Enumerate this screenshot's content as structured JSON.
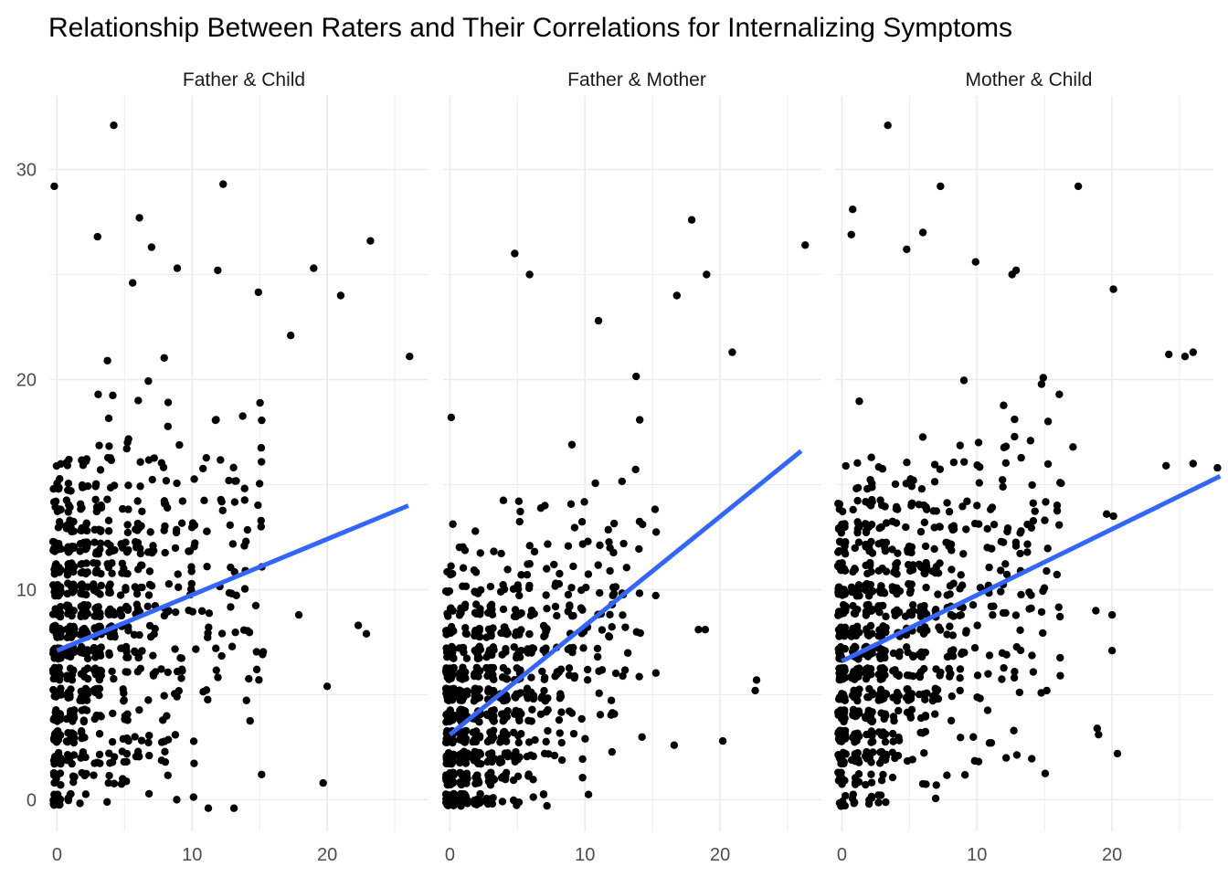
{
  "chart_data": {
    "type": "scatter",
    "title": "Relationship Between Raters and Their Correlations for Internalizing Symptoms",
    "xlabel": "",
    "ylabel": "",
    "xlim": [
      -0.5,
      27.5
    ],
    "ylim": [
      -1.5,
      33.5
    ],
    "x_ticks": [
      0,
      10,
      20
    ],
    "y_ticks": [
      0,
      10,
      20,
      30
    ],
    "grid": true,
    "trend_color": "#3366FF",
    "point_color": "#000000",
    "panels": [
      {
        "label": "Father & Child",
        "trend": {
          "x0": 0,
          "y0": 7.1,
          "x1": 26,
          "y1": 14.0
        },
        "highlighted_points": [
          [
            -0.2,
            29.2
          ],
          [
            4.2,
            32.1
          ],
          [
            12.3,
            29.3
          ],
          [
            6.1,
            27.7
          ],
          [
            23.2,
            26.6
          ],
          [
            3.0,
            26.8
          ],
          [
            7.0,
            26.3
          ],
          [
            19.0,
            25.3
          ],
          [
            8.9,
            25.3
          ],
          [
            11.9,
            25.2
          ],
          [
            5.6,
            24.6
          ],
          [
            21.0,
            24.0
          ],
          [
            26.1,
            21.1
          ],
          [
            17.3,
            22.1
          ],
          [
            19.7,
            0.8
          ],
          [
            20.0,
            5.4
          ],
          [
            22.9,
            7.9
          ],
          [
            22.3,
            8.3
          ],
          [
            17.9,
            8.8
          ],
          [
            13.1,
            -0.4
          ],
          [
            11.2,
            -0.4
          ]
        ],
        "cloud": {
          "n": 900,
          "x_mean": 3.3,
          "x_max": 16.0,
          "intercept": 7.1,
          "slope": 0.27,
          "spread": 4.3,
          "y_max": 24.0
        }
      },
      {
        "label": "Father & Mother",
        "trend": {
          "x0": 0,
          "y0": 3.1,
          "x1": 26,
          "y1": 16.6
        },
        "highlighted_points": [
          [
            4.8,
            26.0
          ],
          [
            5.9,
            25.0
          ],
          [
            26.3,
            26.4
          ],
          [
            17.9,
            27.6
          ],
          [
            19.0,
            25.0
          ],
          [
            16.8,
            24.0
          ],
          [
            11.0,
            22.8
          ],
          [
            20.9,
            21.3
          ],
          [
            0.1,
            18.2
          ],
          [
            22.7,
            5.7
          ],
          [
            22.6,
            5.2
          ],
          [
            20.2,
            2.8
          ],
          [
            18.4,
            8.1
          ],
          [
            18.9,
            8.1
          ],
          [
            16.6,
            2.6
          ]
        ],
        "cloud": {
          "n": 880,
          "x_mean": 3.6,
          "x_max": 15.0,
          "intercept": 3.1,
          "slope": 0.52,
          "spread": 3.6,
          "y_max": 22.5
        }
      },
      {
        "label": "Mother & Child",
        "trend": {
          "x0": 0,
          "y0": 6.6,
          "x1": 28,
          "y1": 15.4
        },
        "highlighted_points": [
          [
            3.4,
            32.1
          ],
          [
            7.3,
            29.2
          ],
          [
            17.5,
            29.2
          ],
          [
            0.8,
            28.1
          ],
          [
            0.7,
            26.9
          ],
          [
            6.0,
            27.0
          ],
          [
            4.8,
            26.2
          ],
          [
            9.9,
            25.6
          ],
          [
            12.6,
            25.0
          ],
          [
            12.9,
            25.2
          ],
          [
            20.1,
            24.3
          ],
          [
            25.4,
            21.1
          ],
          [
            24.2,
            21.2
          ],
          [
            26.0,
            21.3
          ],
          [
            27.8,
            15.8
          ],
          [
            26.0,
            16.0
          ],
          [
            24.0,
            15.9
          ],
          [
            20.1,
            13.5
          ],
          [
            19.6,
            13.6
          ],
          [
            20.4,
            2.2
          ],
          [
            20.0,
            7.1
          ],
          [
            18.9,
            3.4
          ],
          [
            19.0,
            3.1
          ],
          [
            18.8,
            9.0
          ],
          [
            20.0,
            8.8
          ]
        ],
        "cloud": {
          "n": 900,
          "x_mean": 3.8,
          "x_max": 17.0,
          "intercept": 6.6,
          "slope": 0.31,
          "spread": 4.3,
          "y_max": 24.0
        }
      }
    ]
  }
}
